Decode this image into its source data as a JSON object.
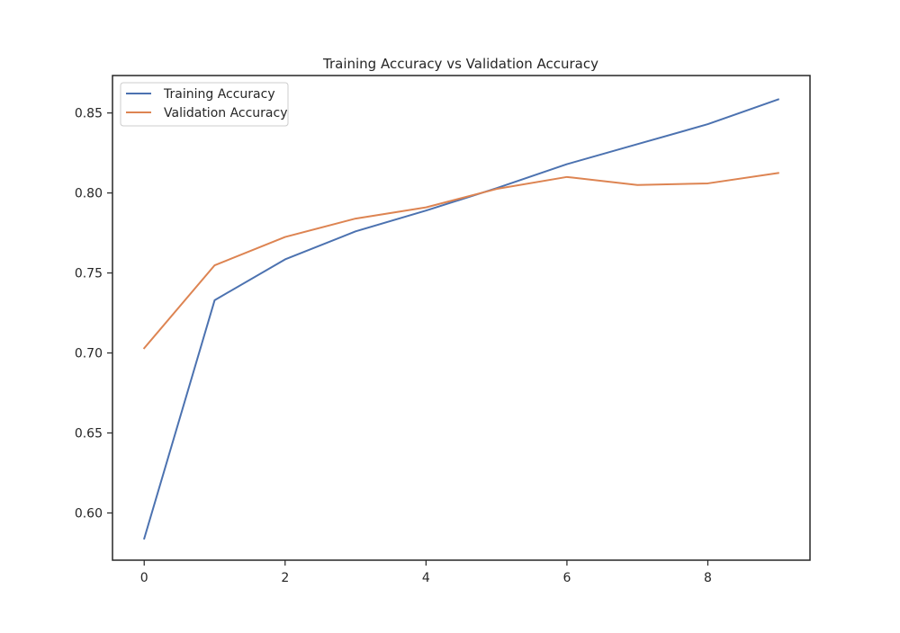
{
  "chart_data": {
    "type": "line",
    "title": "Training Accuracy vs Validation Accuracy",
    "xlabel": "",
    "ylabel": "",
    "x": [
      0,
      1,
      2,
      3,
      4,
      5,
      6,
      7,
      8,
      9
    ],
    "xlim": [
      -0.45,
      9.45
    ],
    "ylim": [
      0.5705,
      0.8734
    ],
    "xticks": [
      0,
      2,
      4,
      6,
      8
    ],
    "yticks": [
      0.6,
      0.65,
      0.7,
      0.75,
      0.8,
      0.85
    ],
    "xtick_labels": [
      "0",
      "2",
      "4",
      "6",
      "8"
    ],
    "ytick_labels": [
      "0.60",
      "0.65",
      "0.70",
      "0.75",
      "0.80",
      "0.85"
    ],
    "grid": false,
    "legend_position": "upper left",
    "series": [
      {
        "name": "Training Accuracy",
        "color": "#4c72b0",
        "values": [
          0.584,
          0.733,
          0.7585,
          0.776,
          0.789,
          0.803,
          0.818,
          0.8305,
          0.843,
          0.8585
        ]
      },
      {
        "name": "Validation Accuracy",
        "color": "#dd8452",
        "values": [
          0.703,
          0.7548,
          0.7725,
          0.784,
          0.791,
          0.8025,
          0.81,
          0.805,
          0.806,
          0.8125
        ]
      }
    ]
  }
}
